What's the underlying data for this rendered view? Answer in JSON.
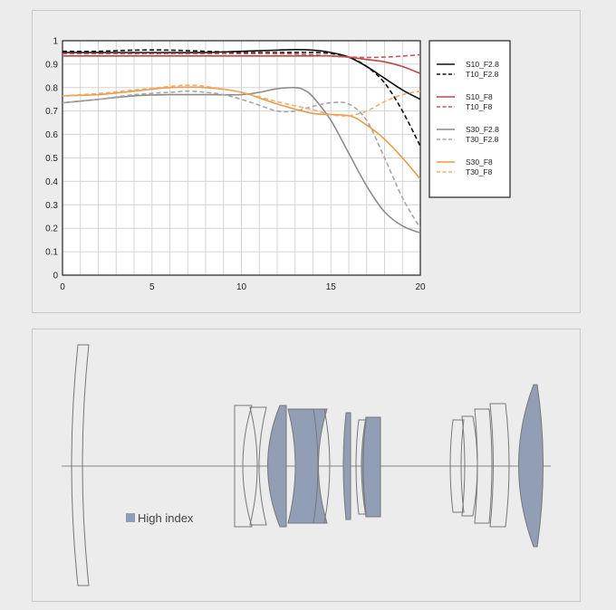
{
  "chart_data": {
    "type": "line",
    "xlim": [
      0,
      20
    ],
    "ylim": [
      0,
      1
    ],
    "xticks": [
      "0",
      "5",
      "10",
      "15",
      "20"
    ],
    "yticks": [
      "0",
      "0.1",
      "0.2",
      "0.3",
      "0.4",
      "0.5",
      "0.6",
      "0.7",
      "0.8",
      "0.9",
      "1"
    ],
    "grid": true,
    "legend_position": "right",
    "series": [
      {
        "name": "S10_F2.8",
        "color": "#111111",
        "dash": false,
        "x": [
          0,
          2,
          4,
          6,
          8,
          10,
          12,
          13,
          14,
          15,
          16,
          17,
          18,
          19,
          20
        ],
        "y": [
          0.95,
          0.95,
          0.95,
          0.95,
          0.95,
          0.955,
          0.96,
          0.962,
          0.96,
          0.95,
          0.93,
          0.89,
          0.84,
          0.79,
          0.75
        ]
      },
      {
        "name": "T10_F2.8",
        "color": "#111111",
        "dash": true,
        "x": [
          0,
          2,
          4,
          6,
          8,
          10,
          12,
          14,
          15,
          16,
          17,
          18,
          19,
          20
        ],
        "y": [
          0.955,
          0.955,
          0.96,
          0.96,
          0.955,
          0.95,
          0.95,
          0.95,
          0.945,
          0.93,
          0.89,
          0.82,
          0.7,
          0.55
        ]
      },
      {
        "name": "S10_F8",
        "color": "#b94a48",
        "dash": false,
        "x": [
          0,
          2,
          4,
          6,
          8,
          10,
          12,
          14,
          15,
          16,
          17,
          18,
          19,
          20
        ],
        "y": [
          0.935,
          0.935,
          0.935,
          0.935,
          0.935,
          0.935,
          0.935,
          0.935,
          0.935,
          0.93,
          0.92,
          0.91,
          0.89,
          0.86
        ]
      },
      {
        "name": "T10_F8",
        "color": "#c85755",
        "dash": true,
        "x": [
          0,
          2,
          4,
          6,
          8,
          10,
          12,
          14,
          16,
          18,
          20
        ],
        "y": [
          0.945,
          0.945,
          0.945,
          0.945,
          0.945,
          0.945,
          0.945,
          0.94,
          0.93,
          0.93,
          0.94
        ]
      },
      {
        "name": "S30_F2.8",
        "color": "#8c8c8c",
        "dash": false,
        "x": [
          0,
          2,
          4,
          6,
          8,
          10,
          11,
          12,
          13,
          13.5,
          14,
          15,
          16,
          17,
          18,
          19,
          20
        ],
        "y": [
          0.735,
          0.75,
          0.765,
          0.77,
          0.77,
          0.77,
          0.78,
          0.795,
          0.8,
          0.79,
          0.76,
          0.66,
          0.52,
          0.38,
          0.27,
          0.21,
          0.18
        ]
      },
      {
        "name": "T30_F2.8",
        "color": "#a6a6a6",
        "dash": true,
        "x": [
          0,
          2,
          4,
          6,
          7,
          8,
          9,
          10,
          11,
          12,
          13,
          14,
          15,
          16,
          17,
          18,
          19,
          20
        ],
        "y": [
          0.735,
          0.75,
          0.77,
          0.78,
          0.785,
          0.78,
          0.77,
          0.75,
          0.725,
          0.7,
          0.7,
          0.72,
          0.735,
          0.73,
          0.66,
          0.5,
          0.33,
          0.2
        ]
      },
      {
        "name": "S30_F8",
        "color": "#e79b4d",
        "dash": false,
        "x": [
          0,
          2,
          4,
          6,
          8,
          10,
          12,
          14,
          16,
          17,
          18,
          19,
          20
        ],
        "y": [
          0.765,
          0.77,
          0.785,
          0.8,
          0.8,
          0.78,
          0.73,
          0.69,
          0.68,
          0.64,
          0.58,
          0.5,
          0.41
        ]
      },
      {
        "name": "T30_F8",
        "color": "#f0b06a",
        "dash": true,
        "x": [
          0,
          2,
          4,
          6,
          7,
          8,
          10,
          12,
          14,
          15,
          16,
          17,
          18,
          19,
          20
        ],
        "y": [
          0.765,
          0.775,
          0.79,
          0.805,
          0.81,
          0.805,
          0.78,
          0.74,
          0.705,
          0.685,
          0.68,
          0.7,
          0.74,
          0.77,
          0.785
        ]
      }
    ]
  },
  "lens_diagram": {
    "legend_label": "High index",
    "high_index_color": "#929eb5"
  }
}
